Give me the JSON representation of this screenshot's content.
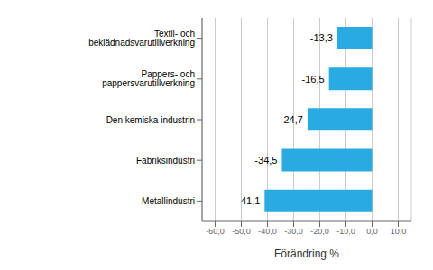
{
  "chart_data": {
    "type": "bar",
    "orientation": "horizontal",
    "categories": [
      "Metallindustri",
      "Fabriksindustri",
      "Den kemiska industrin",
      "Pappers- och pappersvarutillverkning",
      "Textil- och beklädnadsvarutillverkning"
    ],
    "values": [
      -41.1,
      -34.5,
      -24.7,
      -16.5,
      -13.3
    ],
    "value_labels": [
      "-41,1",
      "-34,5",
      "-24,7",
      "-16,5",
      "-13,3"
    ],
    "data_labels": true,
    "color": "#29ABE2",
    "xlabel": "Förändring %",
    "xlim": [
      -65,
      15
    ],
    "xticks": [
      {
        "value": -60.0,
        "label": "-60,0"
      },
      {
        "value": -50.0,
        "label": "-50,0"
      },
      {
        "value": -40.0,
        "label": "-40,0"
      },
      {
        "value": -30.0,
        "label": "-30,0"
      },
      {
        "value": -20.0,
        "label": "-20,0"
      },
      {
        "value": -10.0,
        "label": "-10,0"
      },
      {
        "value": 0.0,
        "label": "0,0"
      },
      {
        "value": 10.0,
        "label": "10,0"
      }
    ],
    "grid": true
  }
}
